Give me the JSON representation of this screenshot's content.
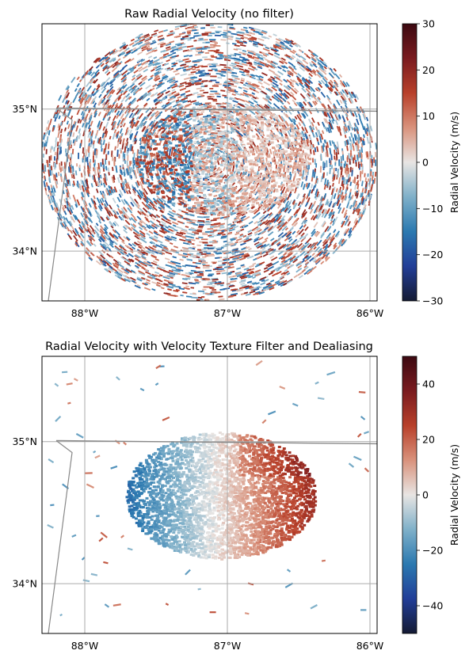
{
  "chart_data": [
    {
      "type": "heatmap",
      "title": "Raw Radial Velocity (no filter)",
      "x_ticks": [
        {
          "value": -88,
          "label": "88°W"
        },
        {
          "value": -87,
          "label": "87°W"
        },
        {
          "value": -86,
          "label": "86°W"
        }
      ],
      "y_ticks": [
        {
          "value": 34,
          "label": "34°N"
        },
        {
          "value": 35,
          "label": "35°N"
        }
      ],
      "xlim": [
        -88.3,
        -85.95
      ],
      "ylim": [
        33.65,
        35.6
      ],
      "grid": true,
      "colorbar": {
        "label": "Radial Velocity (m/s)",
        "range": [
          -30,
          30
        ],
        "ticks": [
          30,
          20,
          10,
          0,
          -10,
          -20,
          -30
        ],
        "tick_labels": [
          "30",
          "20",
          "10",
          "0",
          "−10",
          "−20",
          "−30"
        ],
        "colormap": "balance",
        "colors": [
          "#141a33",
          "#223e98",
          "#2b79b0",
          "#7fb0c9",
          "#e8e5e3",
          "#d9927c",
          "#b8402a",
          "#7a1b1f",
          "#3c0911"
        ]
      },
      "description_values": {
        "pattern": "noisy aliased velocities across radar range with a coherent couplet near center"
      }
    },
    {
      "type": "heatmap",
      "title": "Radial Velocity with Velocity Texture Filter and Dealiasing",
      "x_ticks": [
        {
          "value": -88,
          "label": "88°W"
        },
        {
          "value": -87,
          "label": "87°W"
        },
        {
          "value": -86,
          "label": "86°W"
        }
      ],
      "y_ticks": [
        {
          "value": 34,
          "label": "34°N"
        },
        {
          "value": 35,
          "label": "35°N"
        }
      ],
      "xlim": [
        -88.3,
        -85.95
      ],
      "ylim": [
        33.65,
        35.6
      ],
      "grid": true,
      "colorbar": {
        "label": "Radial Velocity (m/s)",
        "range": [
          -50,
          50
        ],
        "ticks": [
          40,
          20,
          0,
          -20,
          -40
        ],
        "tick_labels": [
          "40",
          "20",
          "0",
          "−20",
          "−40"
        ],
        "colormap": "balance",
        "colors": [
          "#141a33",
          "#223e98",
          "#2b79b0",
          "#7fb0c9",
          "#e8e5e3",
          "#d9927c",
          "#b8402a",
          "#7a1b1f",
          "#3c0911"
        ]
      }
    }
  ]
}
